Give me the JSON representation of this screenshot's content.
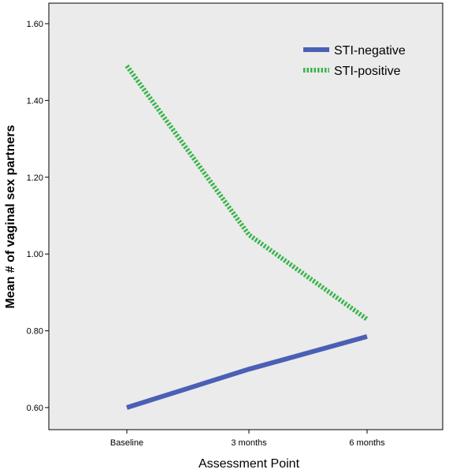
{
  "chart_data": {
    "type": "line",
    "title": "",
    "xlabel": "Assessment Point",
    "ylabel": "Mean # of vaginal sex partners",
    "categories": [
      "Baseline",
      "3 months",
      "6 months"
    ],
    "yticks": [
      "0.60",
      "0.80",
      "1.00",
      "1.20",
      "1.40",
      "1.60"
    ],
    "ylim": [
      0.52,
      1.65
    ],
    "grid": false,
    "legend_position": "top-right",
    "background_color": "#ebebeb",
    "series": [
      {
        "name": "STI-negative",
        "values": [
          0.6,
          0.7,
          0.785
        ],
        "color": "#4b5fb4",
        "style": "solid"
      },
      {
        "name": "STI-positive",
        "values": [
          1.49,
          1.05,
          0.83
        ],
        "color": "#39b54a",
        "style": "dotted"
      }
    ]
  }
}
